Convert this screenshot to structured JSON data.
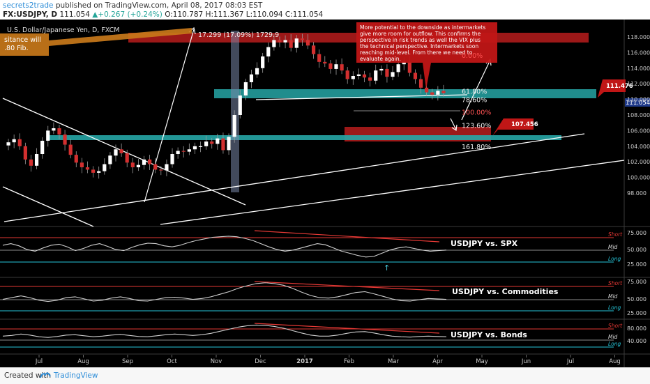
{
  "header": {
    "author": "secrets2trade",
    "published_text": " published on TradingView.com, April 08, 2017 08:03 EST",
    "symbol_interval": "FX:USDJPY, D",
    "last": "111.054",
    "change": "▲+0.267 (+0.24%)",
    "ohlc": "O:110.787 H:111.367 L:110.094 C:111.054"
  },
  "footer": {
    "created_with": "Created with",
    "brand": "TradingView"
  },
  "chart_data": {
    "type": "candlestick",
    "symbol_title": "U.S. Dollar/Japanese Yen, D, FXCM",
    "y_ticks": [
      "118.000",
      "116.000",
      "114.000",
      "112.000",
      "110.000",
      "108.000",
      "106.000",
      "104.000",
      "102.000",
      "100.000",
      "98.000"
    ],
    "x_ticks": [
      "Jul",
      "Aug",
      "Sep",
      "Oct",
      "Nov",
      "Dec",
      "2017",
      "Feb",
      "Mar",
      "Apr",
      "May",
      "Jun",
      "Jul",
      "Aug"
    ],
    "price_labels": {
      "current": "111.054",
      "resistance": "111.476",
      "target": "107.456"
    },
    "fib_labels": [
      {
        "label": "0.00%",
        "value": 115.6
      },
      {
        "label": "61.80%",
        "value": 111.0
      },
      {
        "label": "78.60%",
        "value": 109.9
      },
      {
        "label": "100.00%",
        "value": 108.3
      },
      {
        "label": "123.60%",
        "value": 106.6
      },
      {
        "label": "161.80%",
        "value": 103.9
      }
    ],
    "measure_label": "17.299 (17.09%) 1729.9",
    "callout_left": [
      "sitance will",
      ".80 Fib."
    ],
    "annotation": [
      "More potential to the downside as intermarkets",
      "give more room for outflow. This confirms the",
      "perspective in risk trends as well the VIX plus",
      "the technical perspective. Intermarkets soon",
      "reaching mid-level. From there we need to",
      "evaluate again."
    ],
    "close_series": [
      104.5,
      104.9,
      104.0,
      102.3,
      101.5,
      103.0,
      104.7,
      106.0,
      106.3,
      105.5,
      104.2,
      102.9,
      101.9,
      101.3,
      101.0,
      100.6,
      100.8,
      101.7,
      102.8,
      103.6,
      103.1,
      101.9,
      101.3,
      101.6,
      102.3,
      101.7,
      101.0,
      100.9,
      101.7,
      103.0,
      103.4,
      103.3,
      103.6,
      104.0,
      104.0,
      104.6,
      104.3,
      105.0,
      103.5,
      105.2,
      108.0,
      110.5,
      112.2,
      113.2,
      114.0,
      115.5,
      116.7,
      117.6,
      117.3,
      117.6,
      116.6,
      117.8,
      117.6,
      116.9,
      115.8,
      114.8,
      114.6,
      113.9,
      114.5,
      113.7,
      112.6,
      113.0,
      113.2,
      112.8,
      112.4,
      113.7,
      113.9,
      112.9,
      113.5,
      114.5,
      114.8,
      113.4,
      112.6,
      111.5,
      110.9,
      110.6,
      111.1,
      110.8
    ],
    "panels": [
      {
        "title": "USDJPY vs. SPX",
        "ticks": [
          "75.000",
          "50.000",
          "25.000"
        ],
        "levels": [
          "Short",
          "Mid",
          "Long"
        ]
      },
      {
        "title": "USDJPY vs. Commodities",
        "ticks": [
          "75.000",
          "50.000",
          "25.000"
        ],
        "levels": [
          "Short",
          "Mid",
          "Long"
        ]
      },
      {
        "title": "USDJPY vs. Bonds",
        "ticks": [
          "80.000",
          "40.000"
        ],
        "levels": [
          "Short",
          "Mid",
          "Long"
        ]
      }
    ]
  }
}
